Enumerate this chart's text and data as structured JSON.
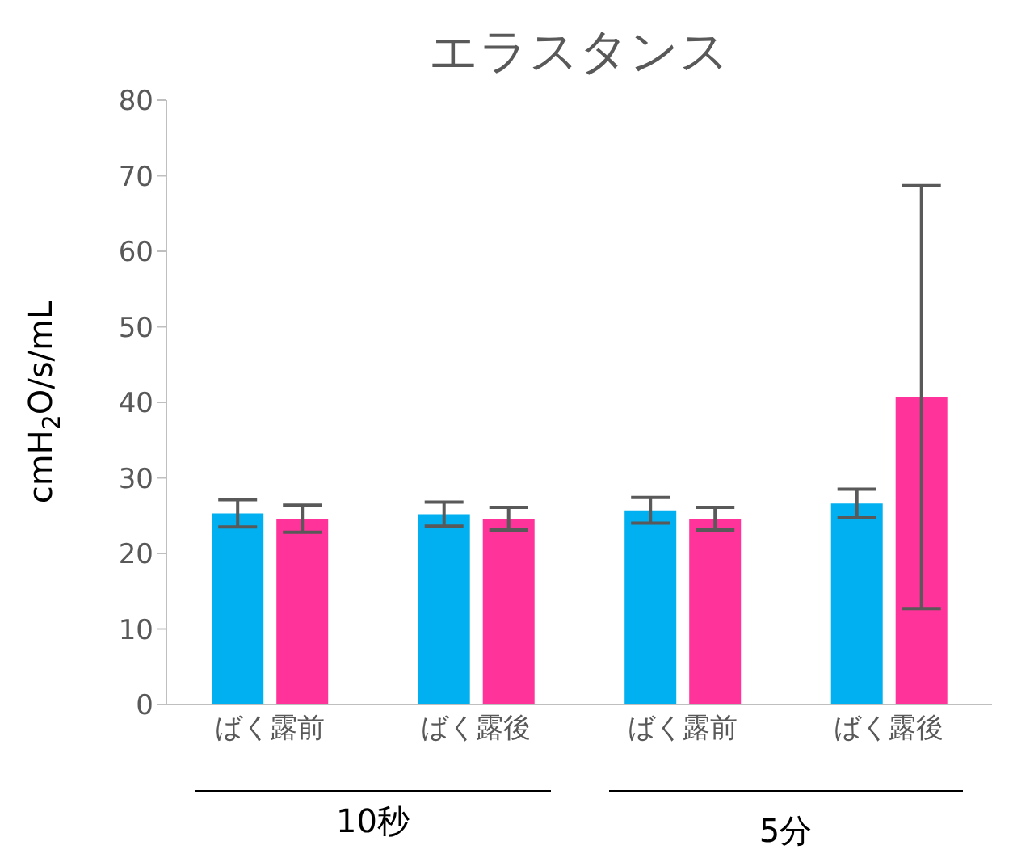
{
  "chart_data": {
    "type": "bar",
    "title": "エラスタンス",
    "ylabel": "cmH$_{2}$O/s/mL",
    "categories": [
      "ばく露前",
      "ばく露後",
      "ばく露前",
      "ばく露後"
    ],
    "series": [
      {
        "color": "#00b0f0",
        "values": [
          25.3,
          25.2,
          25.7,
          26.6
        ],
        "errors": [
          1.8,
          1.6,
          1.7,
          1.9
        ]
      },
      {
        "color": "#ff3399",
        "values": [
          24.6,
          24.6,
          24.6,
          40.7
        ],
        "errors": [
          1.8,
          1.5,
          1.5,
          28.0
        ]
      }
    ],
    "ylim": [
      0,
      80
    ],
    "yticks": [
      0,
      10,
      20,
      30,
      40,
      50,
      60,
      70,
      80
    ],
    "grid": false,
    "legend": false,
    "annotations": [
      "10秒",
      "5分"
    ]
  }
}
